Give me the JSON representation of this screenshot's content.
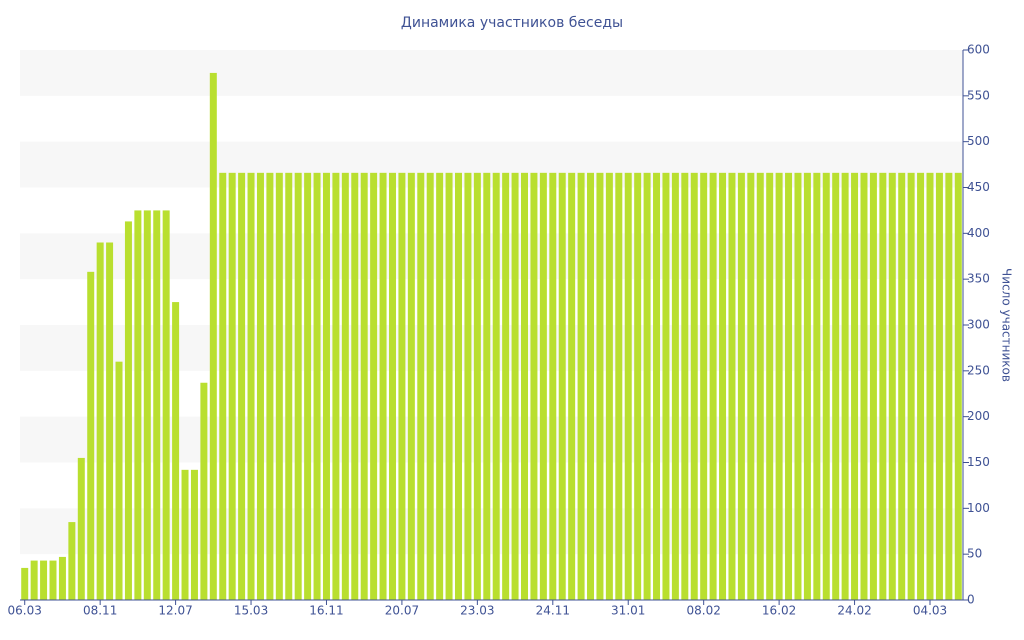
{
  "chart_data": {
    "type": "bar",
    "title": "Динамика участников беседы",
    "y_label": "Число участников",
    "categories": [
      "06.03",
      null,
      null,
      null,
      null,
      null,
      null,
      null,
      "08.11",
      null,
      null,
      null,
      null,
      null,
      null,
      null,
      "12.07",
      null,
      null,
      null,
      null,
      null,
      null,
      null,
      "15.03",
      null,
      null,
      null,
      null,
      null,
      null,
      null,
      "16.11",
      null,
      null,
      null,
      null,
      null,
      null,
      null,
      "20.07",
      null,
      null,
      null,
      null,
      null,
      null,
      null,
      "23.03",
      null,
      null,
      null,
      null,
      null,
      null,
      null,
      "24.11",
      null,
      null,
      null,
      null,
      null,
      null,
      null,
      "31.01",
      null,
      null,
      null,
      null,
      null,
      null,
      null,
      "08.02",
      null,
      null,
      null,
      null,
      null,
      null,
      null,
      "16.02",
      null,
      null,
      null,
      null,
      null,
      null,
      null,
      "24.02",
      null,
      null,
      null,
      null,
      null,
      null,
      null,
      "04.03",
      null,
      null,
      null
    ],
    "values": [
      35,
      43,
      43,
      43,
      47,
      85,
      155,
      358,
      390,
      390,
      260,
      413,
      425,
      425,
      425,
      425,
      325,
      142,
      142,
      237,
      575,
      466,
      466,
      466,
      466,
      466,
      466,
      466,
      466,
      466,
      466,
      466,
      466,
      466,
      466,
      466,
      466,
      466,
      466,
      466,
      466,
      466,
      466,
      466,
      466,
      466,
      466,
      466,
      466,
      466,
      466,
      466,
      466,
      466,
      466,
      466,
      466,
      466,
      466,
      466,
      466,
      466,
      466,
      466,
      466,
      466,
      466,
      466,
      466,
      466,
      466,
      466,
      466,
      466,
      466,
      466,
      466,
      466,
      466,
      466,
      466,
      466,
      466,
      466,
      466,
      466,
      466,
      466,
      466,
      466,
      466,
      466,
      466,
      466,
      466,
      466,
      466,
      466,
      466,
      466
    ],
    "color": "#b9df2f",
    "ylim": [
      0,
      600
    ],
    "yticks": [
      0,
      50,
      100,
      150,
      200,
      250,
      300,
      350,
      400,
      450,
      500,
      550,
      600
    ],
    "y_axis_side": "right",
    "grid": "bands"
  }
}
